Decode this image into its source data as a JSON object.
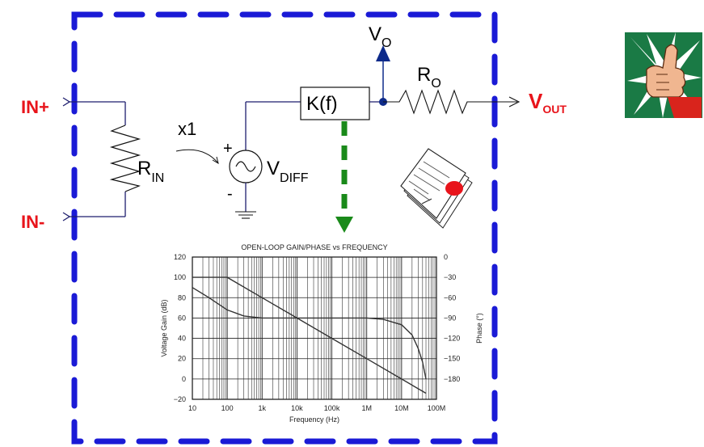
{
  "colors": {
    "dashed_border": "#1a1ad6",
    "arrow_green": "#1a8a1a",
    "accent_red": "#e8141b",
    "wire": "#1e1e6e",
    "vo_arrow": "#0d2a8a"
  },
  "labels": {
    "in_plus": "IN+",
    "in_minus": "IN-",
    "x1": "x1",
    "r_in_main": "R",
    "r_in_sub": "IN",
    "plus": "+",
    "minus": "-",
    "vdiff_main": "V",
    "vdiff_sub": "DIFF",
    "kf": "K(f)",
    "vo_main": "V",
    "vo_sub": "O",
    "ro_main": "R",
    "ro_sub": "O",
    "vout_main": "V",
    "vout_sub": "OUT"
  },
  "icons": {
    "thumbs_up": "thumbs-up-icon",
    "certificate": "certificate-icon"
  },
  "chart_data": {
    "type": "line",
    "title": "OPEN-LOOP GAIN/PHASE vs FREQUENCY",
    "xlabel": "Frequency (Hz)",
    "ylabel_left": "Voltage Gain (dB)",
    "ylabel_right": "Phase (°)",
    "x_scale": "log",
    "xlim": [
      10,
      100000000
    ],
    "ylim_left": [
      -20,
      120
    ],
    "ylim_right": [
      -210,
      0
    ],
    "x_ticks": [
      "10",
      "100",
      "1k",
      "10k",
      "100k",
      "1M",
      "10M",
      "100M"
    ],
    "y_ticks_left": [
      "120",
      "100",
      "80",
      "60",
      "40",
      "20",
      "0",
      "−20"
    ],
    "y_ticks_right": [
      "0",
      "−30",
      "−60",
      "−90",
      "−120",
      "−150",
      "−180"
    ],
    "grid": true,
    "series": [
      {
        "axis": "left",
        "x": [
          10,
          100,
          1000,
          10000,
          100000,
          1000000,
          10000000,
          50000000
        ],
        "y": [
          100,
          100,
          80,
          60,
          40,
          20,
          0,
          -14
        ]
      },
      {
        "axis": "right",
        "x": [
          10,
          30,
          100,
          300,
          1000,
          10000,
          100000,
          1000000,
          3000000,
          10000000,
          20000000,
          30000000,
          40000000,
          50000000
        ],
        "y": [
          -45,
          -60,
          -78,
          -87,
          -90,
          -90,
          -90,
          -90,
          -92,
          -100,
          -115,
          -135,
          -155,
          -180
        ]
      }
    ]
  }
}
